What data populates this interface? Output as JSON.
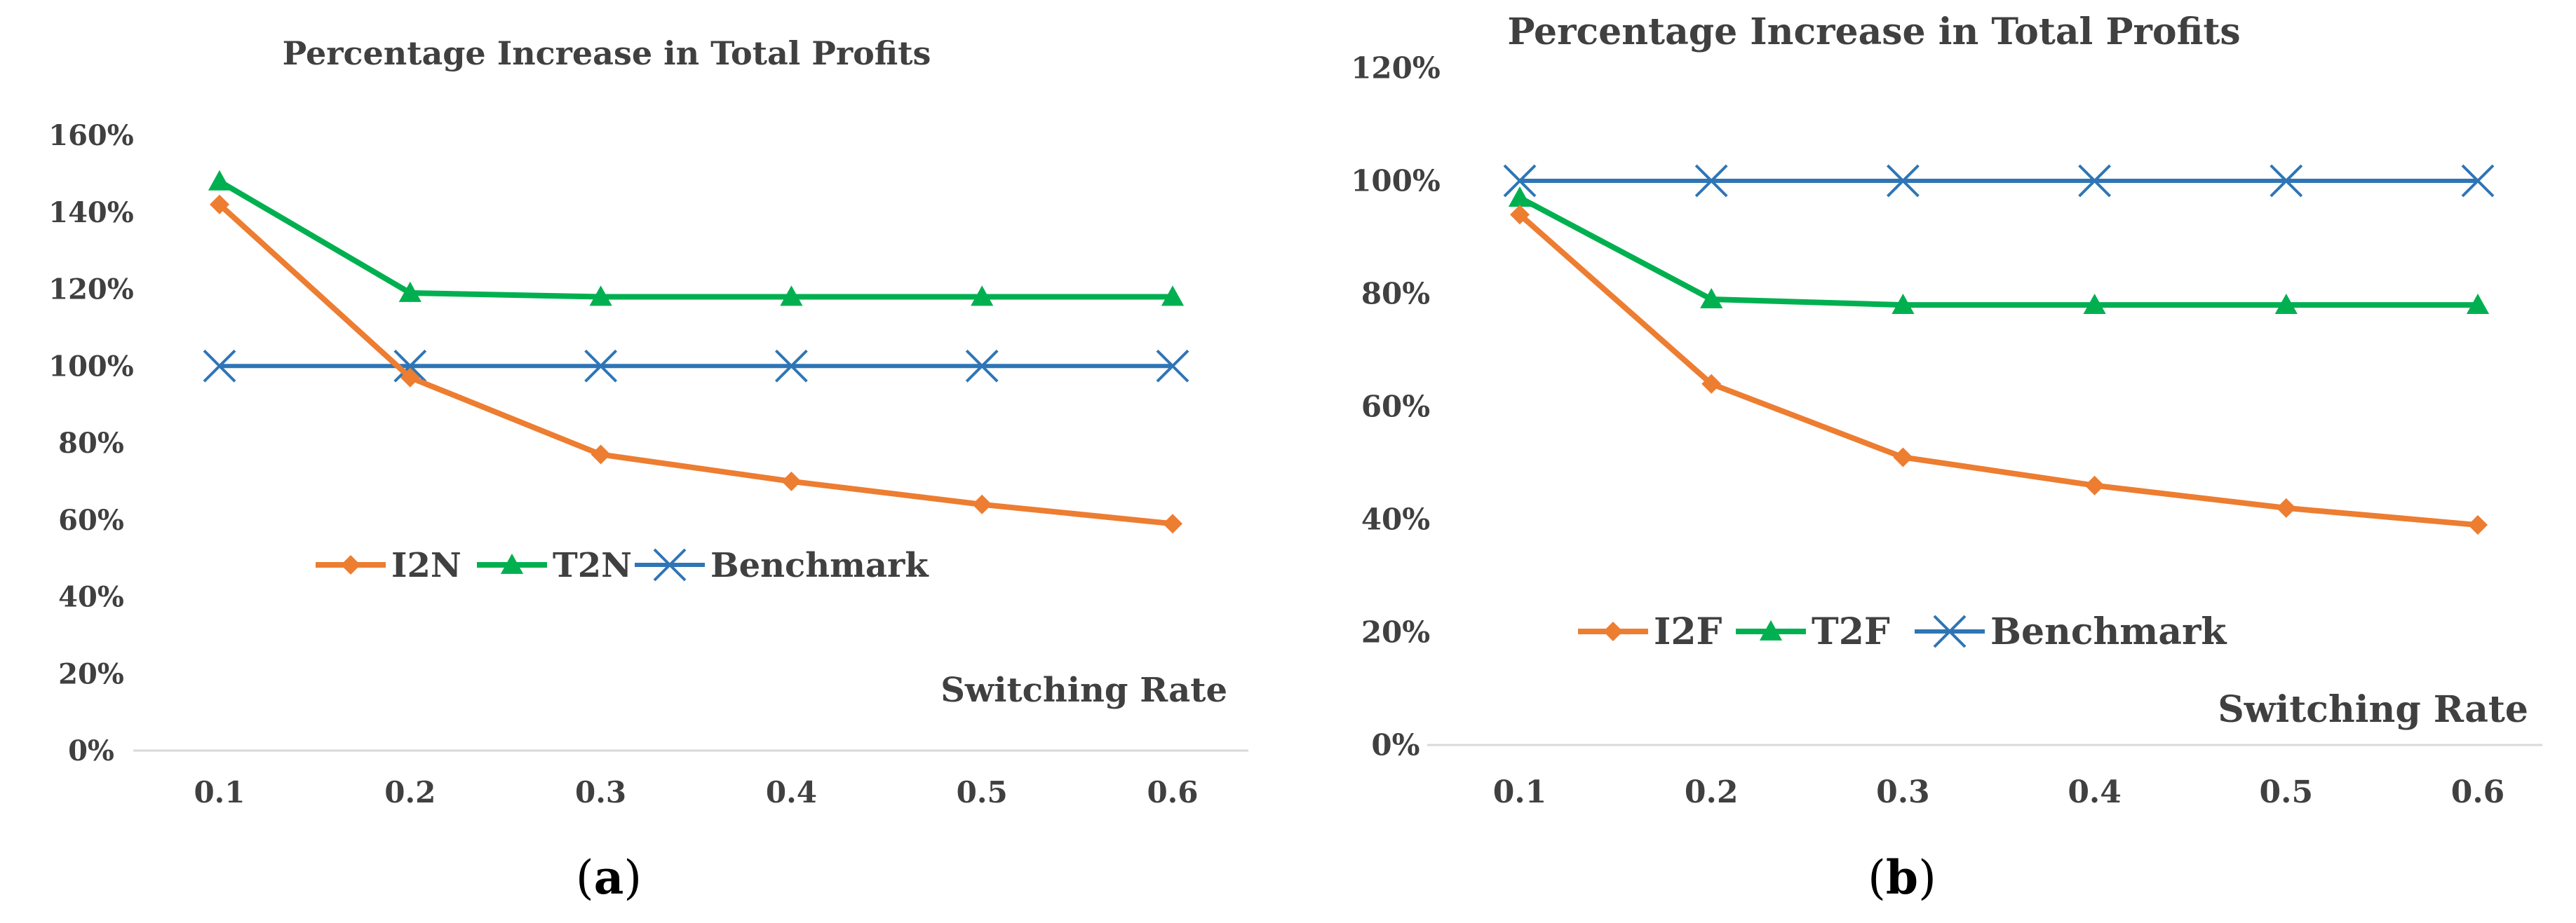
{
  "chart_data": [
    {
      "type": "line",
      "panel_label": "(a)",
      "panel_letter": "a",
      "title": "Percentage Increase in Total Profits",
      "xlabel": "Switching Rate",
      "ylabel": "",
      "categories": [
        "0.1",
        "0.2",
        "0.3",
        "0.4",
        "0.5",
        "0.6"
      ],
      "ylim": [
        0,
        160
      ],
      "yticks": [
        "0%",
        "20%",
        "40%",
        "60%",
        "80%",
        "100%",
        "120%",
        "140%",
        "160%"
      ],
      "grid": false,
      "legend_position": "center-left",
      "series": [
        {
          "name": "I2N",
          "marker": "diamond",
          "color": "#ED7D31",
          "values": [
            142,
            97,
            77,
            70,
            64,
            59
          ]
        },
        {
          "name": "T2N",
          "marker": "triangle",
          "color": "#00B050",
          "values": [
            148,
            119,
            118,
            118,
            118,
            118
          ]
        },
        {
          "name": "Benchmark",
          "marker": "x",
          "color": "#2E75B6",
          "values": [
            100,
            100,
            100,
            100,
            100,
            100
          ]
        }
      ]
    },
    {
      "type": "line",
      "panel_label": "(b)",
      "panel_letter": "b",
      "title": "Percentage Increase in Total Profits",
      "xlabel": "Switching Rate",
      "ylabel": "",
      "categories": [
        "0.1",
        "0.2",
        "0.3",
        "0.4",
        "0.5",
        "0.6"
      ],
      "ylim": [
        0,
        120
      ],
      "yticks": [
        "0%",
        "20%",
        "40%",
        "60%",
        "80%",
        "100%",
        "120%"
      ],
      "grid": false,
      "legend_position": "lower-left",
      "series": [
        {
          "name": "I2F",
          "marker": "diamond",
          "color": "#ED7D31",
          "values": [
            94,
            64,
            51,
            46,
            42,
            39
          ]
        },
        {
          "name": "T2F",
          "marker": "triangle",
          "color": "#00B050",
          "values": [
            97,
            79,
            78,
            78,
            78,
            78
          ]
        },
        {
          "name": "Benchmark",
          "marker": "x",
          "color": "#2E75B6",
          "values": [
            100,
            100,
            100,
            100,
            100,
            100
          ]
        }
      ]
    }
  ]
}
